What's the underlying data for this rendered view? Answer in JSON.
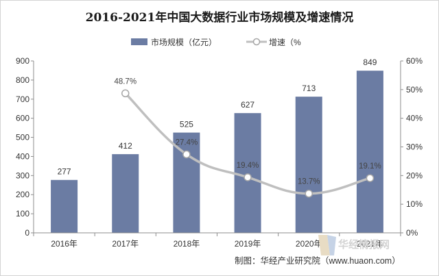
{
  "chart_data": {
    "type": "bar",
    "title": "2016-2021年中国大数据行业市场规模及增速情况",
    "categories": [
      "2016年",
      "2017年",
      "2018年",
      "2019年",
      "2020年",
      "2021年"
    ],
    "series": [
      {
        "name": "市场规模（亿元）",
        "type": "bar",
        "axis": "left",
        "values": [
          277,
          412,
          525,
          627,
          713,
          849
        ],
        "color": "#6b7ca3"
      },
      {
        "name": "增速（%",
        "type": "line",
        "axis": "right",
        "values": [
          null,
          48.7,
          27.4,
          19.4,
          13.7,
          19.1
        ],
        "labels": [
          "",
          "48.7%",
          "27.4%",
          "19.4%",
          "13.7%",
          "19.1%"
        ],
        "color": "#bfbfbf"
      }
    ],
    "y_left": {
      "min": 0,
      "max": 900,
      "step": 100,
      "ticks": [
        "0",
        "100",
        "200",
        "300",
        "400",
        "500",
        "600",
        "700",
        "800",
        "900"
      ]
    },
    "y_right": {
      "min": 0,
      "max": 60,
      "step": 10,
      "ticks": [
        "0%",
        "10%",
        "20%",
        "30%",
        "40%",
        "50%",
        "60%"
      ]
    },
    "grid": false,
    "legend_position": "top-center"
  },
  "source": "制图：华经产业研究院（www.huaon.com）",
  "watermark": "华经情报网"
}
